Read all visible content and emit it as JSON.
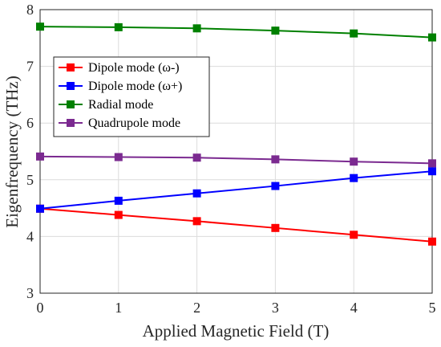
{
  "chart_data": {
    "type": "line",
    "xlabel": "Applied Magnetic Field (T)",
    "ylabel": "Eigenfrequency (THz)",
    "xlim": [
      0,
      5
    ],
    "ylim": [
      3,
      8
    ],
    "xticks": [
      "0",
      "1",
      "2",
      "3",
      "4",
      "5"
    ],
    "yticks": [
      "3",
      "4",
      "5",
      "6",
      "7",
      "8"
    ],
    "grid": true,
    "legend_position": "top-left",
    "x": [
      0,
      1,
      2,
      3,
      4,
      5
    ],
    "series": [
      {
        "name": "Dipole mode (ω-)",
        "color": "#ff0000",
        "marker": "square",
        "values": [
          4.49,
          4.38,
          4.27,
          4.15,
          4.03,
          3.91
        ]
      },
      {
        "name": "Dipole mode (ω+)",
        "color": "#0000ff",
        "marker": "square",
        "values": [
          4.49,
          4.63,
          4.76,
          4.89,
          5.03,
          5.15
        ]
      },
      {
        "name": "Radial mode",
        "color": "#008000",
        "marker": "square",
        "values": [
          7.7,
          7.69,
          7.67,
          7.63,
          7.58,
          7.51
        ]
      },
      {
        "name": "Quadrupole mode",
        "color": "#7b2a90",
        "marker": "square",
        "values": [
          5.41,
          5.4,
          5.39,
          5.36,
          5.32,
          5.29
        ]
      }
    ]
  }
}
